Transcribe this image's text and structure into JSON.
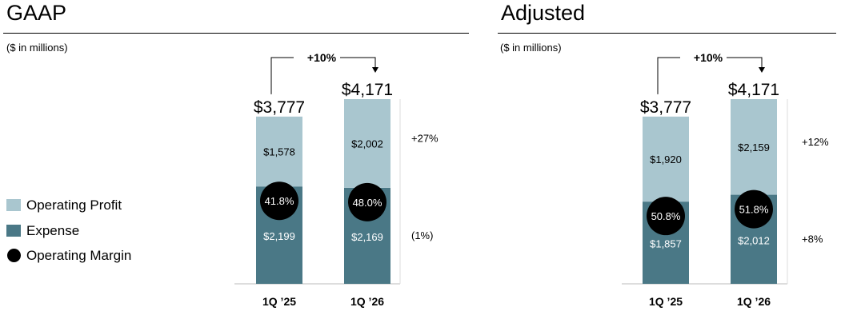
{
  "colors": {
    "operating_profit": "#a9c6cf",
    "expense": "#4a7886",
    "operating_margin": "#000000",
    "text": "#000000"
  },
  "legend": {
    "items": [
      {
        "label": "Operating Profit",
        "color": "#a9c6cf",
        "shape": "square"
      },
      {
        "label": "Expense",
        "color": "#4a7886",
        "shape": "square"
      },
      {
        "label": "Operating Margin",
        "color": "#000000",
        "shape": "circle"
      }
    ]
  },
  "chart_data": [
    {
      "type": "bar",
      "stacked": true,
      "title": "GAAP",
      "units_note": "($ in millions)",
      "categories": [
        "1Q ’25",
        "1Q ’26"
      ],
      "series": [
        {
          "name": "Expense",
          "values": [
            2199,
            2169
          ],
          "labels": [
            "$2,199",
            "$2,169"
          ]
        },
        {
          "name": "Operating Profit",
          "values": [
            1578,
            2002
          ],
          "labels": [
            "$1,578",
            "$2,002"
          ]
        }
      ],
      "totals": [
        3777,
        4171
      ],
      "total_labels": [
        "$3,777",
        "$4,171"
      ],
      "operating_margin": [
        "41.8%",
        "48.0%"
      ],
      "growth": {
        "total": "+10%",
        "operating_profit": "+27%",
        "expense": "(1%)"
      },
      "ylim": [
        0,
        4171
      ]
    },
    {
      "type": "bar",
      "stacked": true,
      "title": "Adjusted",
      "units_note": "($ in millions)",
      "categories": [
        "1Q ’25",
        "1Q ’26"
      ],
      "series": [
        {
          "name": "Expense",
          "values": [
            1857,
            2012
          ],
          "labels": [
            "$1,857",
            "$2,012"
          ]
        },
        {
          "name": "Operating Profit",
          "values": [
            1920,
            2159
          ],
          "labels": [
            "$1,920",
            "$2,159"
          ]
        }
      ],
      "totals": [
        3777,
        4171
      ],
      "total_labels": [
        "$3,777",
        "$4,171"
      ],
      "operating_margin": [
        "50.8%",
        "51.8%"
      ],
      "growth": {
        "total": "+10%",
        "operating_profit": "+12%",
        "expense": "+8%"
      },
      "ylim": [
        0,
        4171
      ]
    }
  ]
}
